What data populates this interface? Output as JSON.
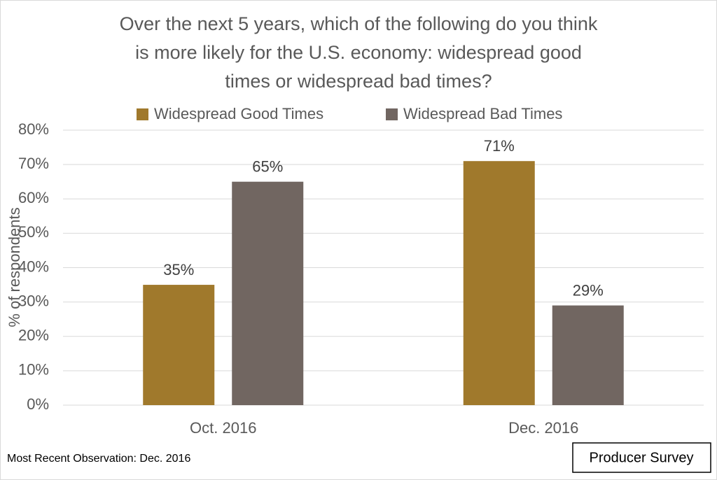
{
  "chart_data": {
    "type": "bar",
    "title": [
      "Over the next 5 years, which of the following do you think",
      "is more likely for the U.S. economy: widespread good",
      "times or widespread bad times?"
    ],
    "y_label": "% of respondents",
    "categories": [
      "Oct. 2016",
      "Dec. 2016"
    ],
    "series": [
      {
        "name": "Widespread Good Times",
        "color": "#a0792c",
        "values": [
          35,
          71
        ],
        "value_labels": [
          "35%",
          "71%"
        ]
      },
      {
        "name": "Widespread Bad Times",
        "color": "#716661",
        "values": [
          65,
          29
        ],
        "value_labels": [
          "65%",
          "29%"
        ]
      }
    ],
    "ylim": [
      0,
      80
    ],
    "yticks": [
      {
        "value": 0,
        "label": "0%"
      },
      {
        "value": 10,
        "label": "10%"
      },
      {
        "value": 20,
        "label": "20%"
      },
      {
        "value": 30,
        "label": "30%"
      },
      {
        "value": 40,
        "label": "40%"
      },
      {
        "value": 50,
        "label": "50%"
      },
      {
        "value": 60,
        "label": "60%"
      },
      {
        "value": 70,
        "label": "70%"
      },
      {
        "value": 80,
        "label": "80%"
      }
    ],
    "grid": true,
    "legend": "top",
    "note": "Most Recent Observation: Dec. 2016",
    "source": "Producer Survey"
  }
}
